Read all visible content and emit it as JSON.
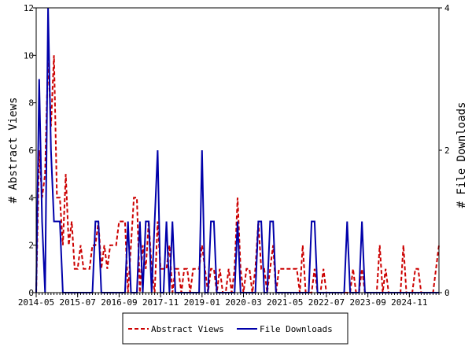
{
  "chart_data": {
    "type": "line",
    "title": "",
    "ylabel_left": "# Abstract Views",
    "ylabel_right": "# File Downloads",
    "ylim_left": [
      0,
      12
    ],
    "ylim_right": [
      0,
      4
    ],
    "yticks_left": [
      "0",
      "2",
      "4",
      "6",
      "8",
      "10",
      "12"
    ],
    "yticks_right": [
      "0",
      "2",
      "4"
    ],
    "xticks": [
      "2014-05",
      "2015-07",
      "2016-09",
      "2017-11",
      "2019-01",
      "2020-03",
      "2021-05",
      "2022-07",
      "2023-09",
      "2024-11"
    ],
    "x_start": "2014-05",
    "x_end": "2025-09",
    "grid": false,
    "legend_position": "bottom",
    "series": [
      {
        "name": "Abstract Views",
        "axis": "left",
        "color": "#cc0000",
        "style": "dashed",
        "points": [
          [
            "2014-05",
            0
          ],
          [
            "2014-06",
            6
          ],
          [
            "2014-07",
            4
          ],
          [
            "2014-08",
            5
          ],
          [
            "2014-09",
            10
          ],
          [
            "2014-10",
            7
          ],
          [
            "2014-11",
            10
          ],
          [
            "2014-12",
            4
          ],
          [
            "2015-01",
            4
          ],
          [
            "2015-02",
            2
          ],
          [
            "2015-03",
            5
          ],
          [
            "2015-04",
            2
          ],
          [
            "2015-05",
            3
          ],
          [
            "2015-06",
            1
          ],
          [
            "2015-07",
            1
          ],
          [
            "2015-08",
            2
          ],
          [
            "2015-09",
            1
          ],
          [
            "2015-10",
            1
          ],
          [
            "2015-11",
            1
          ],
          [
            "2015-12",
            2
          ],
          [
            "2016-01",
            2
          ],
          [
            "2016-02",
            3
          ],
          [
            "2016-03",
            1
          ],
          [
            "2016-04",
            2
          ],
          [
            "2016-05",
            1
          ],
          [
            "2016-06",
            2
          ],
          [
            "2016-07",
            2
          ],
          [
            "2016-08",
            2
          ],
          [
            "2016-09",
            3
          ],
          [
            "2016-10",
            3
          ],
          [
            "2016-11",
            3
          ],
          [
            "2016-12",
            0
          ],
          [
            "2017-01",
            2
          ],
          [
            "2017-02",
            4
          ],
          [
            "2017-03",
            4
          ],
          [
            "2017-04",
            0
          ],
          [
            "2017-05",
            2
          ],
          [
            "2017-06",
            1
          ],
          [
            "2017-07",
            3
          ],
          [
            "2017-08",
            1
          ],
          [
            "2017-09",
            0
          ],
          [
            "2017-10",
            3
          ],
          [
            "2017-11",
            1
          ],
          [
            "2017-12",
            1
          ],
          [
            "2018-01",
            1
          ],
          [
            "2018-02",
            2
          ],
          [
            "2018-03",
            0
          ],
          [
            "2018-04",
            1
          ],
          [
            "2018-05",
            1
          ],
          [
            "2018-06",
            0
          ],
          [
            "2018-07",
            1
          ],
          [
            "2018-08",
            1
          ],
          [
            "2018-09",
            0
          ],
          [
            "2018-10",
            1
          ],
          [
            "2018-11",
            1
          ],
          [
            "2018-12",
            1
          ],
          [
            "2019-01",
            2
          ],
          [
            "2019-02",
            1
          ],
          [
            "2019-03",
            0
          ],
          [
            "2019-04",
            1
          ],
          [
            "2019-05",
            1
          ],
          [
            "2019-06",
            0
          ],
          [
            "2019-07",
            1
          ],
          [
            "2019-08",
            0
          ],
          [
            "2019-09",
            0
          ],
          [
            "2019-10",
            1
          ],
          [
            "2019-11",
            0
          ],
          [
            "2019-12",
            1
          ],
          [
            "2020-01",
            4
          ],
          [
            "2020-02",
            1
          ],
          [
            "2020-03",
            0
          ],
          [
            "2020-04",
            1
          ],
          [
            "2020-05",
            1
          ],
          [
            "2020-06",
            0
          ],
          [
            "2020-07",
            1
          ],
          [
            "2020-08",
            3
          ],
          [
            "2020-09",
            1
          ],
          [
            "2020-10",
            1
          ],
          [
            "2020-11",
            0
          ],
          [
            "2020-12",
            1
          ],
          [
            "2021-01",
            2
          ],
          [
            "2021-02",
            0
          ],
          [
            "2021-03",
            1
          ],
          [
            "2021-04",
            1
          ],
          [
            "2021-05",
            1
          ],
          [
            "2021-06",
            1
          ],
          [
            "2021-07",
            1
          ],
          [
            "2021-08",
            1
          ],
          [
            "2021-09",
            1
          ],
          [
            "2021-10",
            0
          ],
          [
            "2021-11",
            2
          ],
          [
            "2021-12",
            0
          ],
          [
            "2022-01",
            0
          ],
          [
            "2022-02",
            0
          ],
          [
            "2022-03",
            1
          ],
          [
            "2022-04",
            0
          ],
          [
            "2022-05",
            0
          ],
          [
            "2022-06",
            1
          ],
          [
            "2022-07",
            0
          ],
          [
            "2022-08",
            0
          ],
          [
            "2022-09",
            0
          ],
          [
            "2022-10",
            0
          ],
          [
            "2022-11",
            0
          ],
          [
            "2022-12",
            0
          ],
          [
            "2023-01",
            0
          ],
          [
            "2023-02",
            0
          ],
          [
            "2023-03",
            0
          ],
          [
            "2023-04",
            1
          ],
          [
            "2023-05",
            0
          ],
          [
            "2023-06",
            0
          ],
          [
            "2023-07",
            1
          ],
          [
            "2023-08",
            0
          ],
          [
            "2023-09",
            0
          ],
          [
            "2023-10",
            0
          ],
          [
            "2023-11",
            0
          ],
          [
            "2023-12",
            0
          ],
          [
            "2024-01",
            2
          ],
          [
            "2024-02",
            0
          ],
          [
            "2024-03",
            1
          ],
          [
            "2024-04",
            0
          ],
          [
            "2024-05",
            0
          ],
          [
            "2024-06",
            0
          ],
          [
            "2024-07",
            0
          ],
          [
            "2024-08",
            0
          ],
          [
            "2024-09",
            2
          ],
          [
            "2024-10",
            0
          ],
          [
            "2024-11",
            0
          ],
          [
            "2024-12",
            0
          ],
          [
            "2025-01",
            1
          ],
          [
            "2025-02",
            1
          ],
          [
            "2025-03",
            0
          ],
          [
            "2025-04",
            0
          ],
          [
            "2025-05",
            0
          ],
          [
            "2025-06",
            0
          ],
          [
            "2025-07",
            0
          ],
          [
            "2025-08",
            1
          ],
          [
            "2025-09",
            2
          ]
        ]
      },
      {
        "name": "File Downloads",
        "axis": "right",
        "color": "#0000aa",
        "style": "solid",
        "points": [
          [
            "2014-05",
            0
          ],
          [
            "2014-06",
            3
          ],
          [
            "2014-07",
            1
          ],
          [
            "2014-08",
            0
          ],
          [
            "2014-09",
            4
          ],
          [
            "2014-10",
            2
          ],
          [
            "2014-11",
            1
          ],
          [
            "2014-12",
            1
          ],
          [
            "2015-01",
            1
          ],
          [
            "2015-02",
            0
          ],
          [
            "2015-03",
            0
          ],
          [
            "2015-04",
            0
          ],
          [
            "2015-05",
            0
          ],
          [
            "2015-06",
            0
          ],
          [
            "2015-07",
            0
          ],
          [
            "2015-08",
            0
          ],
          [
            "2015-09",
            0
          ],
          [
            "2015-10",
            0
          ],
          [
            "2015-11",
            0
          ],
          [
            "2015-12",
            0
          ],
          [
            "2016-01",
            1
          ],
          [
            "2016-02",
            1
          ],
          [
            "2016-03",
            0
          ],
          [
            "2016-04",
            0
          ],
          [
            "2016-05",
            0
          ],
          [
            "2016-06",
            0
          ],
          [
            "2016-07",
            0
          ],
          [
            "2016-08",
            0
          ],
          [
            "2016-09",
            0
          ],
          [
            "2016-10",
            0
          ],
          [
            "2016-11",
            0
          ],
          [
            "2016-12",
            1
          ],
          [
            "2017-01",
            0
          ],
          [
            "2017-02",
            0
          ],
          [
            "2017-03",
            0
          ],
          [
            "2017-04",
            1
          ],
          [
            "2017-05",
            0
          ],
          [
            "2017-06",
            1
          ],
          [
            "2017-07",
            1
          ],
          [
            "2017-08",
            0
          ],
          [
            "2017-09",
            1
          ],
          [
            "2017-10",
            2
          ],
          [
            "2017-11",
            0
          ],
          [
            "2017-12",
            0
          ],
          [
            "2018-01",
            1
          ],
          [
            "2018-02",
            0
          ],
          [
            "2018-03",
            1
          ],
          [
            "2018-04",
            0
          ],
          [
            "2018-05",
            0
          ],
          [
            "2018-06",
            0
          ],
          [
            "2018-07",
            0
          ],
          [
            "2018-08",
            0
          ],
          [
            "2018-09",
            0
          ],
          [
            "2018-10",
            0
          ],
          [
            "2018-11",
            0
          ],
          [
            "2018-12",
            0
          ],
          [
            "2019-01",
            2
          ],
          [
            "2019-02",
            0
          ],
          [
            "2019-03",
            0
          ],
          [
            "2019-04",
            1
          ],
          [
            "2019-05",
            1
          ],
          [
            "2019-06",
            0
          ],
          [
            "2019-07",
            0
          ],
          [
            "2019-08",
            0
          ],
          [
            "2019-09",
            0
          ],
          [
            "2019-10",
            0
          ],
          [
            "2019-11",
            0
          ],
          [
            "2019-12",
            0
          ],
          [
            "2020-01",
            1
          ],
          [
            "2020-02",
            0
          ],
          [
            "2020-03",
            0
          ],
          [
            "2020-04",
            0
          ],
          [
            "2020-05",
            0
          ],
          [
            "2020-06",
            0
          ],
          [
            "2020-07",
            0
          ],
          [
            "2020-08",
            1
          ],
          [
            "2020-09",
            1
          ],
          [
            "2020-10",
            0
          ],
          [
            "2020-11",
            0
          ],
          [
            "2020-12",
            1
          ],
          [
            "2021-01",
            1
          ],
          [
            "2021-02",
            0
          ],
          [
            "2021-03",
            0
          ],
          [
            "2021-04",
            0
          ],
          [
            "2021-05",
            0
          ],
          [
            "2021-06",
            0
          ],
          [
            "2021-07",
            0
          ],
          [
            "2021-08",
            0
          ],
          [
            "2021-09",
            0
          ],
          [
            "2021-10",
            0
          ],
          [
            "2021-11",
            0
          ],
          [
            "2021-12",
            0
          ],
          [
            "2022-01",
            0
          ],
          [
            "2022-02",
            1
          ],
          [
            "2022-03",
            1
          ],
          [
            "2022-04",
            0
          ],
          [
            "2022-05",
            0
          ],
          [
            "2022-06",
            0
          ],
          [
            "2022-07",
            0
          ],
          [
            "2022-08",
            0
          ],
          [
            "2022-09",
            0
          ],
          [
            "2022-10",
            0
          ],
          [
            "2022-11",
            0
          ],
          [
            "2022-12",
            0
          ],
          [
            "2023-01",
            0
          ],
          [
            "2023-02",
            1
          ],
          [
            "2023-03",
            0
          ],
          [
            "2023-04",
            0
          ],
          [
            "2023-05",
            0
          ],
          [
            "2023-06",
            0
          ],
          [
            "2023-07",
            1
          ],
          [
            "2023-08",
            0
          ],
          [
            "2023-09",
            0
          ],
          [
            "2023-10",
            0
          ],
          [
            "2023-11",
            0
          ],
          [
            "2023-12",
            0
          ],
          [
            "2024-01",
            0
          ],
          [
            "2024-02",
            0
          ],
          [
            "2024-03",
            0
          ],
          [
            "2024-04",
            0
          ],
          [
            "2024-05",
            0
          ],
          [
            "2024-06",
            0
          ],
          [
            "2024-07",
            0
          ],
          [
            "2024-08",
            0
          ],
          [
            "2024-09",
            0
          ],
          [
            "2024-10",
            0
          ],
          [
            "2024-11",
            0
          ],
          [
            "2024-12",
            0
          ],
          [
            "2025-01",
            0
          ],
          [
            "2025-02",
            0
          ],
          [
            "2025-03",
            0
          ],
          [
            "2025-04",
            0
          ],
          [
            "2025-05",
            0
          ],
          [
            "2025-06",
            0
          ],
          [
            "2025-07",
            0
          ],
          [
            "2025-08",
            0
          ],
          [
            "2025-09",
            0
          ]
        ]
      }
    ]
  }
}
